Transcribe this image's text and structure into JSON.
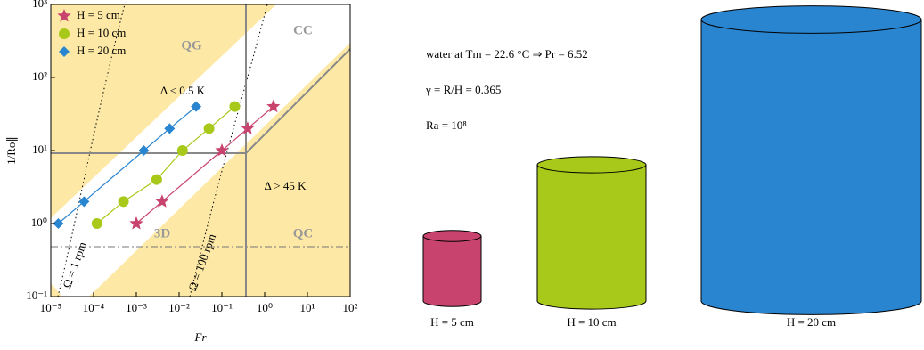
{
  "chart_data": {
    "type": "scatter",
    "xlabel": "Fr",
    "ylabel": "1/Ro∥",
    "xscale": "log",
    "yscale": "log",
    "xlim": [
      1e-05,
      100
    ],
    "ylim": [
      0.1,
      1000
    ],
    "xticks": [
      {
        "value": 1e-05,
        "label": "10⁻⁵"
      },
      {
        "value": 0.0001,
        "label": "10⁻⁴"
      },
      {
        "value": 0.001,
        "label": "10⁻³"
      },
      {
        "value": 0.01,
        "label": "10⁻²"
      },
      {
        "value": 0.1,
        "label": "10⁻¹"
      },
      {
        "value": 1,
        "label": "10⁰"
      },
      {
        "value": 10,
        "label": "10¹"
      },
      {
        "value": 100,
        "label": "10²"
      }
    ],
    "yticks": [
      {
        "value": 0.1,
        "label": "10⁻¹"
      },
      {
        "value": 1,
        "label": "10⁰"
      },
      {
        "value": 10,
        "label": "10¹"
      },
      {
        "value": 100,
        "label": "10²"
      },
      {
        "value": 1000,
        "label": "10³"
      }
    ],
    "legend": "upper left",
    "series": [
      {
        "name": "H = 5 cm",
        "color": "#c8436e",
        "marker": "star",
        "x": [
          0.001,
          0.004,
          0.1,
          0.4,
          1.6
        ],
        "values": [
          1,
          2,
          10,
          20,
          40
        ]
      },
      {
        "name": "H = 10 cm",
        "color": "#a8c919",
        "marker": "circle",
        "x": [
          0.00012,
          0.0005,
          0.003,
          0.012,
          0.05,
          0.2
        ],
        "values": [
          1,
          2,
          4,
          10,
          20,
          40
        ]
      },
      {
        "name": "H = 20 cm",
        "color": "#2a85d0",
        "marker": "diamond",
        "x": [
          1.5e-05,
          6e-05,
          0.0015,
          0.006,
          0.025
        ],
        "values": [
          1,
          2,
          10,
          20,
          40
        ]
      }
    ],
    "region_labels": [
      "QG",
      "CC",
      "Δ < 0.5 K",
      "Δ > 45 K",
      "3D",
      "QC",
      "Ω = 1 rpm",
      "Ω = 100 rpm"
    ],
    "notes": [
      "water at Tm = 22.6 °C ⇒ Pr = 6.52",
      "γ = R/H = 0.365",
      "Ra = 10⁸"
    ]
  }
}
